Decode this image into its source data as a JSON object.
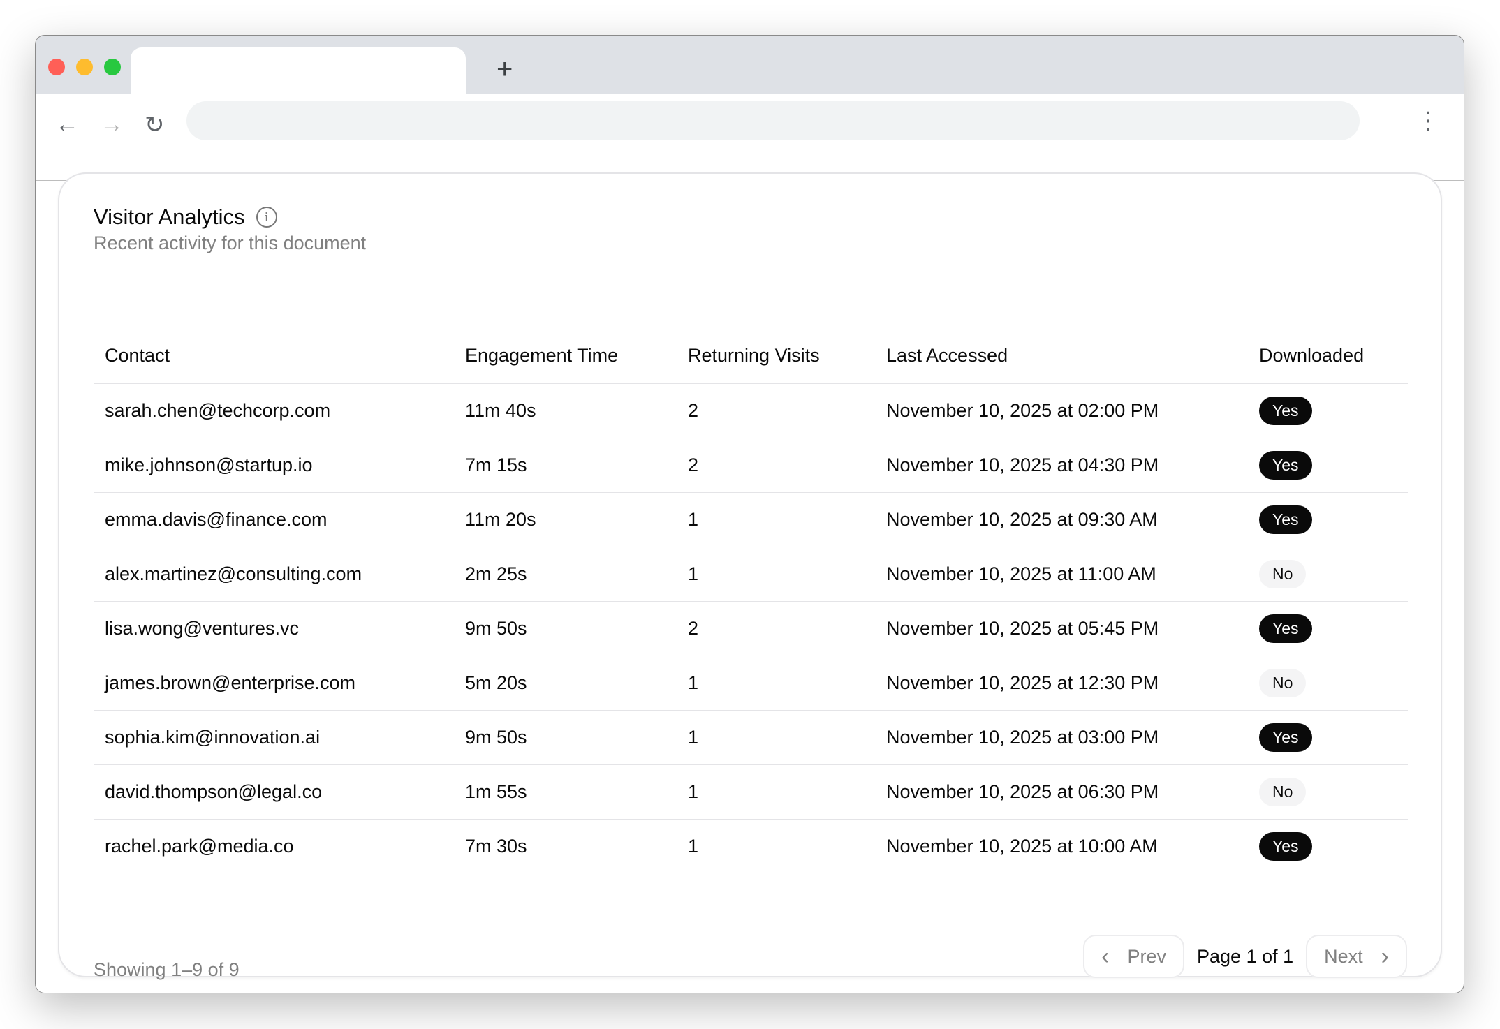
{
  "browser": {
    "new_tab": "+",
    "back": "←",
    "forward": "→",
    "reload": "↻",
    "menu": "⋮",
    "colors": {
      "close": "#ff5f57",
      "minimize": "#febc2e",
      "zoom": "#28c840"
    }
  },
  "card": {
    "title": "Visitor Analytics",
    "subtitle": "Recent activity for this document",
    "info_icon": "i"
  },
  "table": {
    "headers": [
      "Contact",
      "Engagement Time",
      "Returning Visits",
      "Last Accessed",
      "Downloaded"
    ],
    "rows": [
      {
        "contact": "sarah.chen@techcorp.com",
        "time": "11m 40s",
        "visits": "2",
        "last": "November 10, 2025 at 02:00 PM",
        "downloaded": "Yes"
      },
      {
        "contact": "mike.johnson@startup.io",
        "time": "7m 15s",
        "visits": "2",
        "last": "November 10, 2025 at 04:30 PM",
        "downloaded": "Yes"
      },
      {
        "contact": "emma.davis@finance.com",
        "time": "11m 20s",
        "visits": "1",
        "last": "November 10, 2025 at 09:30 AM",
        "downloaded": "Yes"
      },
      {
        "contact": "alex.martinez@consulting.com",
        "time": "2m 25s",
        "visits": "1",
        "last": "November 10, 2025 at 11:00 AM",
        "downloaded": "No"
      },
      {
        "contact": "lisa.wong@ventures.vc",
        "time": "9m 50s",
        "visits": "2",
        "last": "November 10, 2025 at 05:45 PM",
        "downloaded": "Yes"
      },
      {
        "contact": "james.brown@enterprise.com",
        "time": "5m 20s",
        "visits": "1",
        "last": "November 10, 2025 at 12:30 PM",
        "downloaded": "No"
      },
      {
        "contact": "sophia.kim@innovation.ai",
        "time": "9m 50s",
        "visits": "1",
        "last": "November 10, 2025 at 03:00 PM",
        "downloaded": "Yes"
      },
      {
        "contact": "david.thompson@legal.co",
        "time": "1m 55s",
        "visits": "1",
        "last": "November 10, 2025 at 06:30 PM",
        "downloaded": "No"
      },
      {
        "contact": "rachel.park@media.co",
        "time": "7m 30s",
        "visits": "1",
        "last": "November 10, 2025 at 10:00 AM",
        "downloaded": "Yes"
      }
    ]
  },
  "footer": {
    "showing": "Showing 1–9 of 9",
    "prev": "Prev",
    "next": "Next",
    "page": "Page 1 of 1",
    "prev_icon": "‹",
    "next_icon": "›"
  }
}
